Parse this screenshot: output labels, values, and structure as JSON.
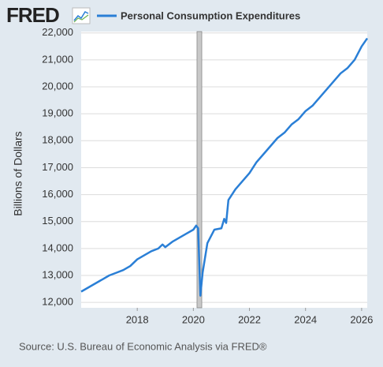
{
  "logo": "FRED",
  "chart_data": {
    "type": "line",
    "y_label": "Billions of Dollars",
    "source": "Source: U.S. Bureau of Economic Analysis via FRED®",
    "x": [
      2016.0,
      2016.25,
      2016.5,
      2016.75,
      2017.0,
      2017.25,
      2017.5,
      2017.75,
      2018.0,
      2018.25,
      2018.5,
      2018.75,
      2018.9,
      2019.0,
      2019.25,
      2019.5,
      2019.75,
      2020.0,
      2020.1,
      2020.17,
      2020.25,
      2020.33,
      2020.5,
      2020.75,
      2021.0,
      2021.1,
      2021.17,
      2021.25,
      2021.5,
      2021.75,
      2022.0,
      2022.25,
      2022.5,
      2022.75,
      2023.0,
      2023.25,
      2023.5,
      2023.75,
      2024.0,
      2024.25,
      2024.5,
      2024.75,
      2025.0,
      2025.25,
      2025.5,
      2025.75,
      2026.0,
      2026.2
    ],
    "series": [
      {
        "name": "Personal Consumption Expenditures",
        "color": "#2a7fd6",
        "values": [
          12400,
          12550,
          12700,
          12850,
          13000,
          13100,
          13200,
          13350,
          13600,
          13750,
          13900,
          14000,
          14150,
          14050,
          14250,
          14400,
          14550,
          14700,
          14850,
          14750,
          12250,
          13100,
          14200,
          14700,
          14750,
          15100,
          14950,
          15800,
          16200,
          16500,
          16800,
          17200,
          17500,
          17800,
          18100,
          18300,
          18600,
          18800,
          19100,
          19300,
          19600,
          19900,
          20200,
          20500,
          20700,
          21000,
          21500,
          21800
        ]
      }
    ],
    "recessions": [
      [
        2020.13,
        2020.3
      ]
    ],
    "xlim": [
      2016.0,
      2026.2
    ],
    "xticks": [
      2018,
      2020,
      2022,
      2024,
      2026
    ],
    "ylim": [
      11800,
      22050
    ],
    "yticks": [
      {
        "value": 12000,
        "label": "12,000"
      },
      {
        "value": 13000,
        "label": "13,000"
      },
      {
        "value": 14000,
        "label": "14,000"
      },
      {
        "value": 15000,
        "label": "15,000"
      },
      {
        "value": 16000,
        "label": "16,000"
      },
      {
        "value": 17000,
        "label": "17,000"
      },
      {
        "value": 18000,
        "label": "18,000"
      },
      {
        "value": 19000,
        "label": "19,000"
      },
      {
        "value": 20000,
        "label": "20,000"
      },
      {
        "value": 21000,
        "label": "21,000"
      },
      {
        "value": 22000,
        "label": "22,000"
      }
    ],
    "grid": true
  }
}
